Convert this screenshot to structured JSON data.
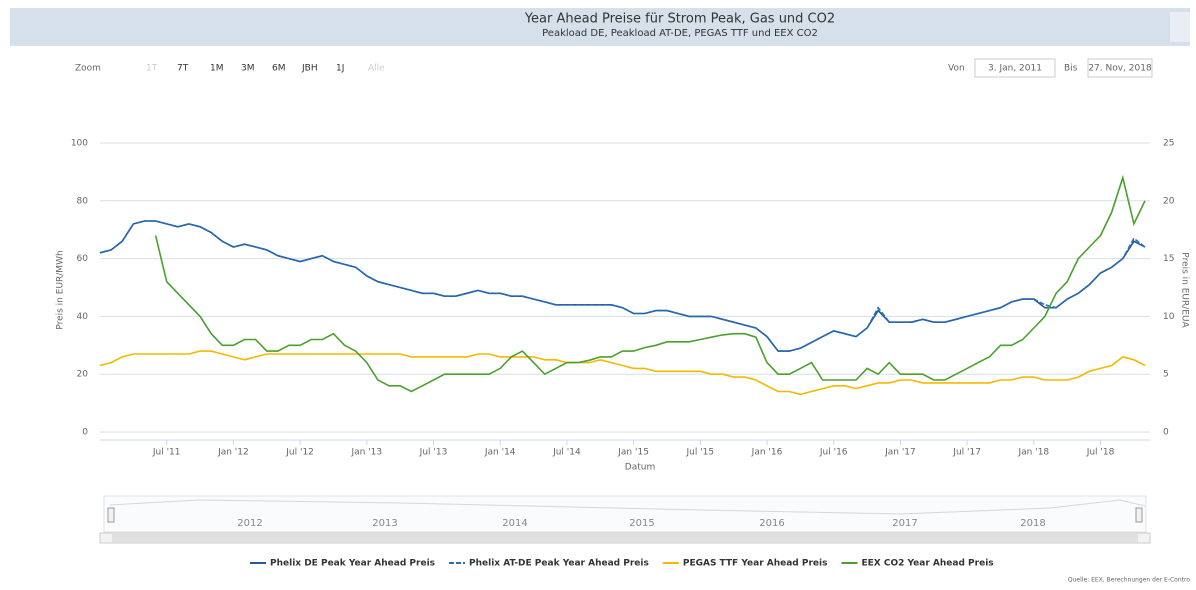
{
  "chart_data": {
    "type": "line",
    "title": "Year Ahead Preise für Strom Peak, Gas und CO2",
    "subtitle": "Peakload DE, Peakload AT-DE, PEGAS TTF und EEX CO2",
    "zoom": {
      "label": "Zoom",
      "buttons": [
        "1T",
        "7T",
        "1M",
        "3M",
        "6M",
        "JBH",
        "1J",
        "Alle"
      ]
    },
    "range": {
      "from_label": "Von",
      "from": "3. Jan, 2011",
      "to_label": "Bis",
      "to": "27. Nov, 2018"
    },
    "xlabel": "Datum",
    "ylabel": "Preis in EUR/MWh",
    "y2label": "Preis in EUR/EUA",
    "ylim": [
      0,
      100
    ],
    "yticks": [
      0,
      20,
      40,
      60,
      80,
      100
    ],
    "y2lim": [
      0,
      25
    ],
    "y2ticks": [
      0,
      5,
      10,
      15,
      20,
      25
    ],
    "grid": true,
    "navigator": [
      "2012",
      "2013",
      "2014",
      "2015",
      "2016",
      "2017",
      "2018"
    ],
    "source": "Quelle: EEX, Berechnungen der E-Contro",
    "categories": [
      null,
      null,
      null,
      null,
      null,
      null,
      "Jul '11",
      null,
      null,
      null,
      null,
      null,
      "Jan '12",
      null,
      null,
      null,
      null,
      null,
      "Jul '12",
      null,
      null,
      null,
      null,
      null,
      "Jan '13",
      null,
      null,
      null,
      null,
      null,
      "Jul '13",
      null,
      null,
      null,
      null,
      null,
      "Jan '14",
      null,
      null,
      null,
      null,
      null,
      "Jul '14",
      null,
      null,
      null,
      null,
      null,
      "Jan '15",
      null,
      null,
      null,
      null,
      null,
      "Jul '15",
      null,
      null,
      null,
      null,
      null,
      "Jan '16",
      null,
      null,
      null,
      null,
      null,
      "Jul '16",
      null,
      null,
      null,
      null,
      null,
      "Jan '17",
      null,
      null,
      null,
      null,
      null,
      "Jul '17",
      null,
      null,
      null,
      null,
      null,
      "Jan '18",
      null,
      null,
      null,
      null,
      null,
      "Jul '18",
      null,
      null,
      null,
      null
    ],
    "series": [
      {
        "name": "Phelix DE Peak Year Ahead Preis",
        "color": "#1f5b9a",
        "dash": false,
        "values": [
          62,
          63,
          66,
          72,
          73,
          73,
          72,
          71,
          72,
          71,
          69,
          66,
          64,
          65,
          64,
          63,
          61,
          60,
          59,
          60,
          61,
          59,
          58,
          57,
          54,
          52,
          51,
          50,
          49,
          48,
          48,
          47,
          47,
          48,
          49,
          48,
          48,
          47,
          47,
          46,
          45,
          44,
          44,
          44,
          44,
          44,
          44,
          43,
          41,
          41,
          42,
          42,
          41,
          40,
          40,
          40,
          39,
          38,
          37,
          36,
          33,
          28,
          28,
          29,
          31,
          33,
          35,
          34,
          33,
          36,
          42,
          38,
          38,
          38,
          39,
          38,
          38,
          39,
          40,
          41,
          42,
          43,
          45,
          46,
          46,
          43,
          43,
          46,
          48,
          51,
          55,
          57,
          60,
          66,
          64
        ]
      },
      {
        "name": "Phelix AT-DE Peak Year Ahead Preis",
        "color": "#2a6db5",
        "dash": true,
        "values": [
          62,
          63,
          66,
          72,
          73,
          73,
          72,
          71,
          72,
          71,
          69,
          66,
          64,
          65,
          64,
          63,
          61,
          60,
          59,
          60,
          61,
          59,
          58,
          57,
          54,
          52,
          51,
          50,
          49,
          48,
          48,
          47,
          47,
          48,
          49,
          48,
          48,
          47,
          47,
          46,
          45,
          44,
          44,
          44,
          44,
          44,
          44,
          43,
          41,
          41,
          42,
          42,
          41,
          40,
          40,
          40,
          39,
          38,
          37,
          36,
          33,
          28,
          28,
          29,
          31,
          33,
          35,
          34,
          33,
          36,
          43,
          38,
          38,
          38,
          39,
          38,
          38,
          39,
          40,
          41,
          42,
          43,
          45,
          46,
          46,
          44,
          43,
          46,
          48,
          51,
          55,
          57,
          60,
          67,
          64
        ]
      },
      {
        "name": "PEGAS TTF Year Ahead Preis",
        "color": "#f5b800",
        "dash": false,
        "values": [
          23,
          24,
          26,
          27,
          27,
          27,
          27,
          27,
          27,
          28,
          28,
          27,
          26,
          25,
          26,
          27,
          27,
          27,
          27,
          27,
          27,
          27,
          27,
          27,
          27,
          27,
          27,
          27,
          26,
          26,
          26,
          26,
          26,
          26,
          27,
          27,
          26,
          26,
          26,
          26,
          25,
          25,
          24,
          24,
          24,
          25,
          24,
          23,
          22,
          22,
          21,
          21,
          21,
          21,
          21,
          20,
          20,
          19,
          19,
          18,
          16,
          14,
          14,
          13,
          14,
          15,
          16,
          16,
          15,
          16,
          17,
          17,
          18,
          18,
          17,
          17,
          17,
          17,
          17,
          17,
          17,
          18,
          18,
          19,
          19,
          18,
          18,
          18,
          19,
          21,
          22,
          23,
          26,
          25,
          23
        ]
      },
      {
        "name": "EEX CO2 Year Ahead Preis",
        "color": "#4aa02c",
        "dash": false,
        "axis": "y2",
        "values": [
          null,
          null,
          null,
          null,
          null,
          17,
          13,
          12,
          11,
          10,
          8.5,
          7.5,
          7.5,
          8,
          8,
          7,
          7,
          7.5,
          7.5,
          8,
          8,
          8.5,
          7.5,
          7,
          6,
          4.5,
          4,
          4,
          3.5,
          4,
          4.5,
          5,
          5,
          5,
          5,
          5,
          5.5,
          6.5,
          7,
          6,
          5,
          5.5,
          6,
          6,
          6.2,
          6.5,
          6.5,
          7,
          7,
          7.3,
          7.5,
          7.8,
          7.8,
          7.8,
          8,
          8.2,
          8.4,
          8.5,
          8.5,
          8.2,
          6,
          5,
          5,
          5.5,
          6,
          4.5,
          4.5,
          4.5,
          4.5,
          5.5,
          5,
          6,
          5,
          5,
          5,
          4.5,
          4.5,
          5,
          5.5,
          6,
          6.5,
          7.5,
          7.5,
          8,
          9,
          10,
          12,
          13,
          15,
          16,
          17,
          19,
          22,
          18,
          20
        ]
      }
    ]
  }
}
